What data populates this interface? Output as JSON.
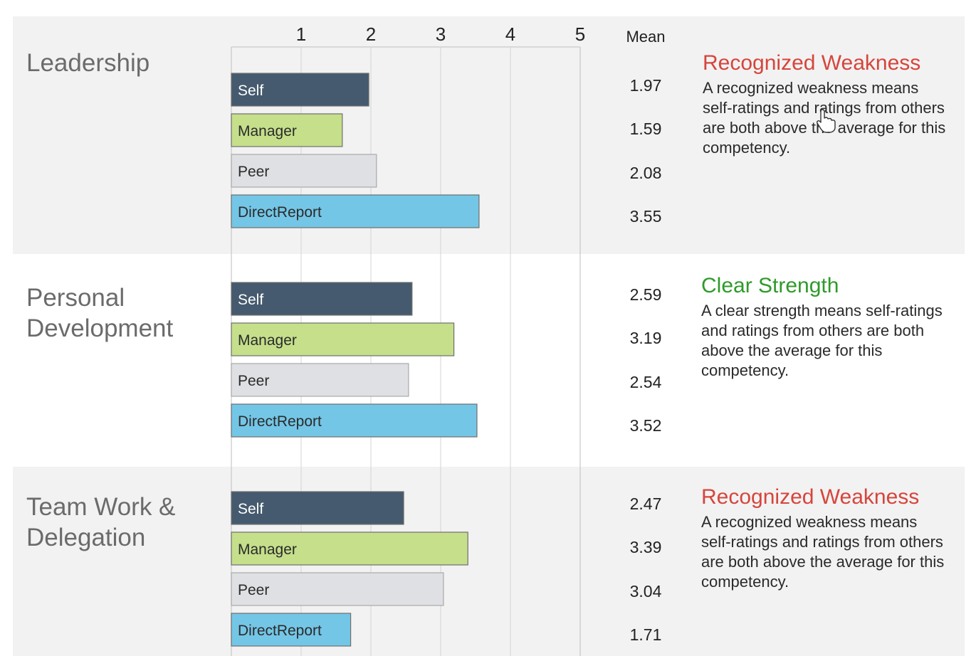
{
  "colors": {
    "band": "#f2f2f2",
    "self": "#455a6e",
    "manager": "#c5df8b",
    "peer": "#dfe0e3",
    "direct_report": "#74c6e6",
    "weakness": "#d6453c",
    "strength": "#2f9a2a",
    "grid": "#d4d4d4"
  },
  "chart_data": {
    "type": "bar",
    "orientation": "horizontal",
    "title": "",
    "xlabel": "",
    "ylabel": "",
    "xlim": [
      0,
      5
    ],
    "x_ticks": [
      "1",
      "2",
      "3",
      "4",
      "5"
    ],
    "mean_header": "Mean",
    "grid": true,
    "legend": "none",
    "groups": [
      {
        "name": "Leadership",
        "bars": [
          {
            "label": "Self",
            "value": 1.97,
            "mean_label": "1.97",
            "color_key": "self"
          },
          {
            "label": "Manager",
            "value": 1.59,
            "mean_label": "1.59",
            "color_key": "manager"
          },
          {
            "label": "Peer",
            "value": 2.08,
            "mean_label": "2.08",
            "color_key": "peer"
          },
          {
            "label": "DirectReport",
            "value": 3.55,
            "mean_label": "3.55",
            "color_key": "direct_report"
          }
        ]
      },
      {
        "name": "Personal Development",
        "bars": [
          {
            "label": "Self",
            "value": 2.59,
            "mean_label": "2.59",
            "color_key": "self"
          },
          {
            "label": "Manager",
            "value": 3.19,
            "mean_label": "3.19",
            "color_key": "manager"
          },
          {
            "label": "Peer",
            "value": 2.54,
            "mean_label": "2.54",
            "color_key": "peer"
          },
          {
            "label": "DirectReport",
            "value": 3.52,
            "mean_label": "3.52",
            "color_key": "direct_report"
          }
        ]
      },
      {
        "name": "Team Work & Delegation",
        "bars": [
          {
            "label": "Self",
            "value": 2.47,
            "mean_label": "2.47",
            "color_key": "self"
          },
          {
            "label": "Manager",
            "value": 3.39,
            "mean_label": "3.39",
            "color_key": "manager"
          },
          {
            "label": "Peer",
            "value": 3.04,
            "mean_label": "3.04",
            "color_key": "peer"
          },
          {
            "label": "DirectReport",
            "value": 1.71,
            "mean_label": "1.71",
            "color_key": "direct_report"
          }
        ]
      }
    ]
  },
  "sections": [
    {
      "title_line1": "Leadership",
      "title_line2": "",
      "status_title": "Recognized Weakness",
      "status_desc": "A recognized weakness means self-ratings and ratings from others are both above the average for this competency."
    },
    {
      "title_line1": "Personal",
      "title_line2": "Development",
      "status_title": "Clear Strength",
      "status_desc": "A clear strength means self-ratings and ratings from others are both above the average for this competency."
    },
    {
      "title_line1": "Team Work &",
      "title_line2": "Delegation",
      "status_title": "Recognized Weakness",
      "status_desc": "A recognized weakness means self-ratings and ratings from others are both above the average for this competency."
    }
  ]
}
